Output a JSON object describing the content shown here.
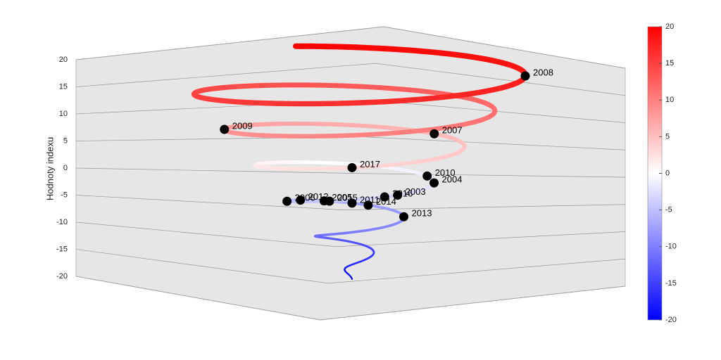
{
  "chart_data": {
    "type": "helix3d",
    "ylabel": "Hodnoty indexu",
    "ylim": [
      -20,
      20
    ],
    "yticks": [
      -20,
      -15,
      -10,
      -5,
      0,
      5,
      10,
      15,
      20
    ],
    "categories": [
      "2008",
      "2009",
      "2007",
      "2017",
      "2010",
      "2004",
      "2003",
      "2016",
      "2015",
      "2006",
      "2012",
      "2005",
      "2011",
      "2014",
      "2013"
    ],
    "values": [
      18,
      8,
      5.5,
      3,
      -1.5,
      -2,
      -3,
      -3.2,
      -4,
      -5,
      -6,
      -6.5,
      -7,
      -7.3,
      -8.5
    ],
    "marker_color": "#000000",
    "colormap": [
      "#0000ff",
      "#ffffff",
      "#ff0000"
    ],
    "colorbar": {
      "lim": [
        -20,
        20
      ],
      "ticks": [
        -20,
        -15,
        -10,
        -5,
        0,
        5,
        10,
        15,
        20
      ]
    },
    "grid": true
  }
}
